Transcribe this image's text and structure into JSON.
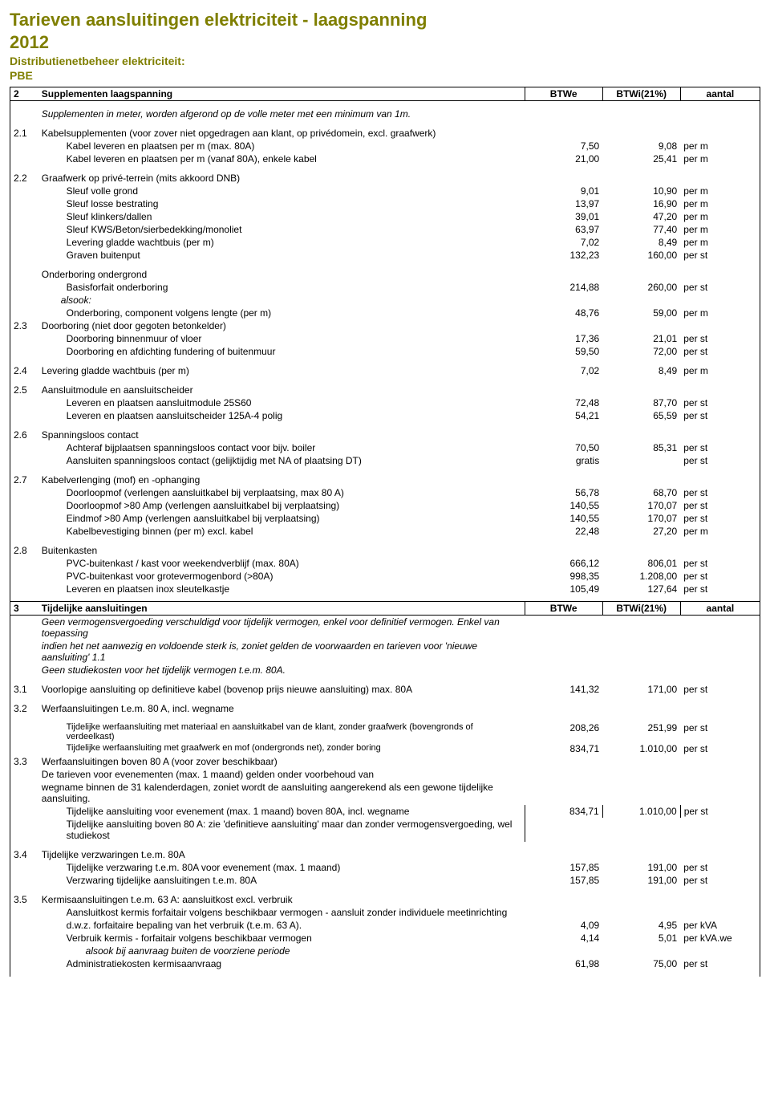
{
  "title": "Tarieven aansluitingen elektriciteit - laagspanning",
  "year": "2012",
  "subtitle": "Distributienetbeheer elektriciteit:",
  "org": "PBE",
  "col_headers": {
    "btwe": "BTWe",
    "btwi": "BTWi(21%)",
    "aantal": "aantal"
  },
  "sections": [
    {
      "num": "2",
      "title": "Supplementen laagspanning"
    },
    {
      "num": "3",
      "title": "Tijdelijke aansluitingen"
    }
  ],
  "s2_intro": "Supplementen in meter, worden afgerond op de volle meter met een minimum van 1m.",
  "s2_1": {
    "num": "2.1",
    "head": "Kabelsupplementen (voor zover niet opgedragen aan klant, op privédomein, excl. graafwerk)",
    "rows": [
      {
        "label": "Kabel leveren en plaatsen per m (max. 80A)",
        "v1": "7,50",
        "v2": "9,08",
        "u": "per m"
      },
      {
        "label": "Kabel leveren en plaatsen per m (vanaf 80A), enkele kabel",
        "v1": "21,00",
        "v2": "25,41",
        "u": "per m"
      }
    ]
  },
  "s2_2": {
    "num": "2.2",
    "head": "Graafwerk op privé-terrein (mits akkoord DNB)",
    "rows": [
      {
        "label": "Sleuf volle grond",
        "v1": "9,01",
        "v2": "10,90",
        "u": "per m"
      },
      {
        "label": "Sleuf losse bestrating",
        "v1": "13,97",
        "v2": "16,90",
        "u": "per m"
      },
      {
        "label": "Sleuf klinkers/dallen",
        "v1": "39,01",
        "v2": "47,20",
        "u": "per m"
      },
      {
        "label": "Sleuf KWS/Beton/sierbedekking/monoliet",
        "v1": "63,97",
        "v2": "77,40",
        "u": "per m"
      },
      {
        "label": "Levering gladde wachtbuis (per m)",
        "v1": "7,02",
        "v2": "8,49",
        "u": "per m"
      },
      {
        "label": "Graven buitenput",
        "v1": "132,23",
        "v2": "160,00",
        "u": "per st"
      }
    ]
  },
  "s2_onderboring": {
    "head": "Onderboring ondergrond",
    "basis": {
      "label": "Basisforfait onderboring",
      "v1": "214,88",
      "v2": "260,00",
      "u": "per st"
    },
    "alsook": "alsook:",
    "component": {
      "label": "Onderboring, component volgens lengte (per m)",
      "v1": "48,76",
      "v2": "59,00",
      "u": "per m"
    }
  },
  "s2_3": {
    "num": "2.3",
    "head": "Doorboring (niet door gegoten betonkelder)",
    "rows": [
      {
        "label": "Doorboring binnenmuur of vloer",
        "v1": "17,36",
        "v2": "21,01",
        "u": "per st"
      },
      {
        "label": "Doorboring en afdichting fundering of buitenmuur",
        "v1": "59,50",
        "v2": "72,00",
        "u": "per st"
      }
    ]
  },
  "s2_4": {
    "num": "2.4",
    "label": "Levering gladde wachtbuis (per m)",
    "v1": "7,02",
    "v2": "8,49",
    "u": "per m"
  },
  "s2_5": {
    "num": "2.5",
    "head": "Aansluitmodule en aansluitscheider",
    "rows": [
      {
        "label": "Leveren en plaatsen aansluitmodule 25S60",
        "v1": "72,48",
        "v2": "87,70",
        "u": "per st"
      },
      {
        "label": "Leveren en plaatsen aansluitscheider 125A-4 polig",
        "v1": "54,21",
        "v2": "65,59",
        "u": "per st"
      }
    ]
  },
  "s2_6": {
    "num": "2.6",
    "head": "Spanningsloos contact",
    "rows": [
      {
        "label": "Achteraf bijplaatsen spanningsloos contact voor bijv. boiler",
        "v1": "70,50",
        "v2": "85,31",
        "u": "per st"
      },
      {
        "label": "Aansluiten spanningsloos contact (gelijktijdig met NA of plaatsing DT)",
        "v1": "gratis",
        "v2": "",
        "u": "per st"
      }
    ]
  },
  "s2_7": {
    "num": "2.7",
    "head": "Kabelverlenging (mof) en -ophanging",
    "rows": [
      {
        "label": "Doorloopmof (verlengen aansluitkabel bij verplaatsing, max 80 A)",
        "v1": "56,78",
        "v2": "68,70",
        "u": "per st"
      },
      {
        "label": "Doorloopmof >80 Amp (verlengen aansluitkabel bij verplaatsing)",
        "v1": "140,55",
        "v2": "170,07",
        "u": "per st"
      },
      {
        "label": "Eindmof >80 Amp (verlengen aansluitkabel bij verplaatsing)",
        "v1": "140,55",
        "v2": "170,07",
        "u": "per st"
      },
      {
        "label": "Kabelbevestiging binnen (per m) excl. kabel",
        "v1": "22,48",
        "v2": "27,20",
        "u": "per m"
      }
    ]
  },
  "s2_8": {
    "num": "2.8",
    "head": "Buitenkasten",
    "rows": [
      {
        "label": "PVC-buitenkast / kast voor weekendverblijf (max. 80A)",
        "v1": "666,12",
        "v2": "806,01",
        "u": "per st"
      },
      {
        "label": "PVC-buitenkast voor grotevermogenbord (>80A)",
        "v1": "998,35",
        "v2": "1.208,00",
        "u": "per st"
      },
      {
        "label": "Leveren en plaatsen inox sleutelkastje",
        "v1": "105,49",
        "v2": "127,64",
        "u": "per st"
      }
    ]
  },
  "s3_intro": [
    "Geen vermogensvergoeding verschuldigd voor tijdelijk vermogen, enkel voor definitief vermogen. Enkel van toepassing",
    "indien het net aanwezig en voldoende sterk is, zoniet gelden de voorwaarden en tarieven voor 'nieuwe aansluiting' 1.1",
    "Geen studiekosten voor het tijdelijk vermogen t.e.m. 80A."
  ],
  "s3_1": {
    "num": "3.1",
    "label": "Voorlopige aansluiting op definitieve kabel (bovenop prijs nieuwe aansluiting) max. 80A",
    "v1": "141,32",
    "v2": "171,00",
    "u": "per st"
  },
  "s3_2": {
    "num": "3.2",
    "head": "Werfaansluitingen t.e.m. 80 A, incl. wegname",
    "rows": [
      {
        "label": "Tijdelijke werfaansluiting met materiaal en aansluitkabel van de klant, zonder graafwerk (bovengronds of verdeelkast)",
        "v1": "208,26",
        "v2": "251,99",
        "u": "per st"
      },
      {
        "label": "Tijdelijke werfaansluiting met graafwerk en mof (ondergronds net), zonder boring",
        "v1": "834,71",
        "v2": "1.010,00",
        "u": "per st"
      }
    ]
  },
  "s3_3": {
    "num": "3.3",
    "head": "Werfaansluitingen boven 80 A (voor zover beschikbaar)",
    "lines": [
      "De tarieven voor evenementen (max. 1 maand) gelden onder voorbehoud van",
      "wegname binnen de 31 kalenderdagen, zoniet wordt de aansluiting aangerekend als een gewone tijdelijke aansluiting."
    ],
    "rows": [
      {
        "label": "Tijdelijke aansluiting voor evenement (max. 1 maand) boven 80A, incl. wegname",
        "v1": "834,71",
        "v2": "1.010,00",
        "u": "per st"
      },
      {
        "label": "Tijdelijke aansluiting boven 80 A: zie 'definitieve aansluiting' maar dan zonder vermogensvergoeding, wel studiekost",
        "v1": "",
        "v2": "",
        "u": ""
      }
    ]
  },
  "s3_4": {
    "num": "3.4",
    "head": "Tijdelijke verzwaringen t.e.m. 80A",
    "rows": [
      {
        "label": "Tijdelijke verzwaring t.e.m. 80A voor evenement (max. 1 maand)",
        "v1": "157,85",
        "v2": "191,00",
        "u": "per st"
      },
      {
        "label": "Verzwaring tijdelijke aansluitingen t.e.m. 80A",
        "v1": "157,85",
        "v2": "191,00",
        "u": "per st"
      }
    ]
  },
  "s3_5": {
    "num": "3.5",
    "head": "Kermisaansluitingen t.e.m. 63 A: aansluitkost excl. verbruik",
    "line1": "Aansluitkost kermis forfaitair volgens beschikbaar vermogen - aansluit zonder individuele meetinrichting",
    "rows": [
      {
        "label": "d.w.z. forfaitaire bepaling van het verbruik (t.e.m. 63 A).",
        "v1": "4,09",
        "v2": "4,95",
        "u": "per kVA"
      },
      {
        "label": "Verbruik kermis - forfaitair volgens beschikbaar vermogen",
        "v1": "4,14",
        "v2": "5,01",
        "u": "per kVA.we"
      }
    ],
    "alsook": "alsook bij aanvraag buiten de voorziene periode",
    "admin": {
      "label": "Administratiekosten kermisaanvraag",
      "v1": "61,98",
      "v2": "75,00",
      "u": "per st"
    }
  }
}
